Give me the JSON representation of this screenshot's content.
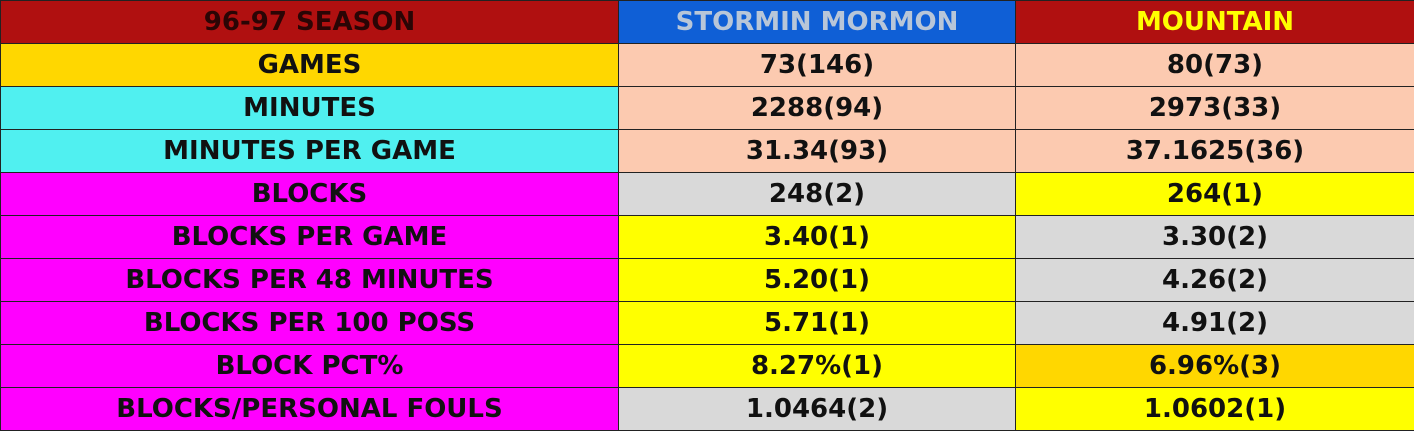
{
  "header": {
    "season": "96-97 SEASON",
    "player1": "STORMIN MORMON",
    "player2": "MOUNTAIN"
  },
  "colors": {
    "header_red": "#b01010",
    "player1_blue": "#0f5fd6",
    "player2_text": "#ffff00",
    "best": "#ffff00",
    "second": "#d9d9d9",
    "third": "#ffd700",
    "neutral": "#fccab0"
  },
  "rows": [
    {
      "label": "GAMES",
      "p1": "73(146)",
      "p2": "80(73)"
    },
    {
      "label": "MINUTES",
      "p1": "2288(94)",
      "p2": "2973(33)"
    },
    {
      "label": "MINUTES PER GAME",
      "p1": "31.34(93)",
      "p2": "37.1625(36)"
    },
    {
      "label": "BLOCKS",
      "p1": "248(2)",
      "p2": "264(1)"
    },
    {
      "label": "BLOCKS PER GAME",
      "p1": "3.40(1)",
      "p2": "3.30(2)"
    },
    {
      "label": "BLOCKS PER 48 MINUTES",
      "p1": "5.20(1)",
      "p2": "4.26(2)"
    },
    {
      "label": "BLOCKS PER 100 POSS",
      "p1": "5.71(1)",
      "p2": "4.91(2)"
    },
    {
      "label": "BLOCK PCT%",
      "p1": "8.27%(1)",
      "p2": "6.96%(3)"
    },
    {
      "label": "BLOCKS/PERSONAL FOULS",
      "p1": "1.0464(2)",
      "p2": "1.0602(1)"
    }
  ]
}
